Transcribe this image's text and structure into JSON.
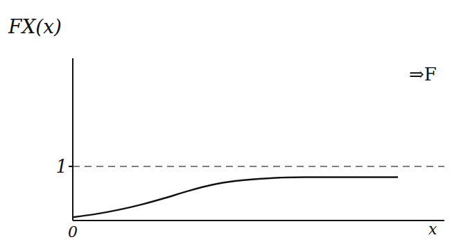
{
  "chart_data": {
    "type": "line",
    "y_label": "FX(x)",
    "x_label": "x",
    "annotation": "⇒F",
    "x": [
      0,
      0.5,
      1,
      1.5,
      2,
      2.5,
      3,
      3.5,
      4,
      5,
      6,
      7
    ],
    "values": [
      0.06,
      0.12,
      0.2,
      0.3,
      0.42,
      0.55,
      0.66,
      0.73,
      0.77,
      0.8,
      0.8,
      0.8
    ],
    "color": "#111111",
    "xlim": [
      0,
      8
    ],
    "xticks": [
      0
    ],
    "ylim": [
      0,
      3
    ],
    "yticks": [
      1
    ],
    "hlines": [
      1
    ],
    "grid": false
  }
}
